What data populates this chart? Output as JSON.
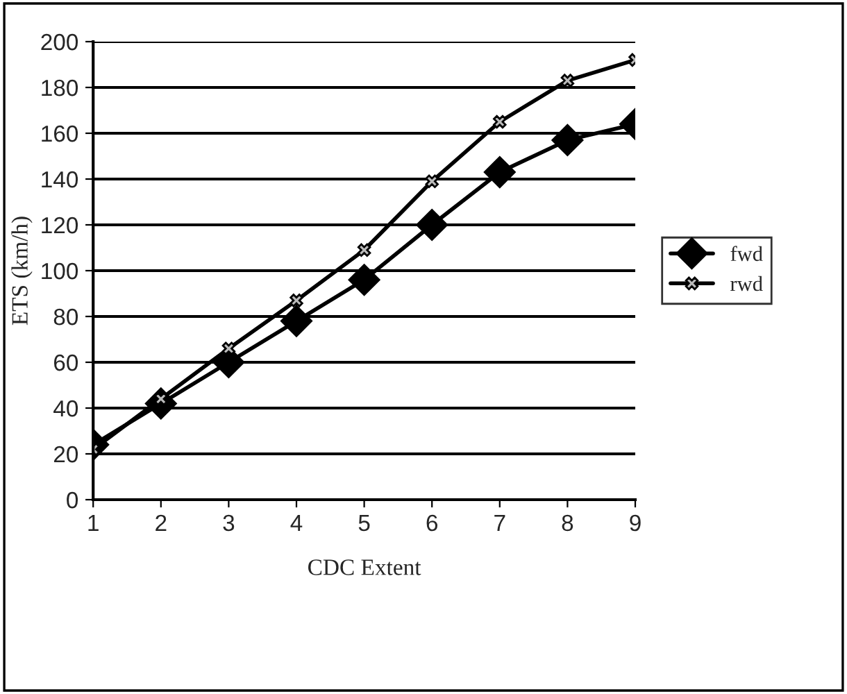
{
  "chart_data": {
    "type": "line",
    "xlabel": "CDC Extent",
    "ylabel": "ETS (km/h)",
    "x": [
      1,
      2,
      3,
      4,
      5,
      6,
      7,
      8,
      9
    ],
    "series": [
      {
        "name": "fwd",
        "color": "#000000",
        "marker": "diamond",
        "values": [
          24,
          42,
          60,
          78,
          96,
          120,
          143,
          157,
          164
        ]
      },
      {
        "name": "rwd",
        "color": "#000000",
        "marker": "cross",
        "values": [
          22,
          44,
          66,
          87,
          109,
          139,
          165,
          183,
          192
        ]
      }
    ],
    "xlim": [
      1,
      9
    ],
    "xticks": [
      1,
      2,
      3,
      4,
      5,
      6,
      7,
      8,
      9
    ],
    "ylim": [
      0,
      200
    ],
    "yticks": [
      0,
      20,
      40,
      60,
      80,
      100,
      120,
      140,
      160,
      180,
      200
    ],
    "grid": "y",
    "legend": "right",
    "line_style": "solid"
  }
}
